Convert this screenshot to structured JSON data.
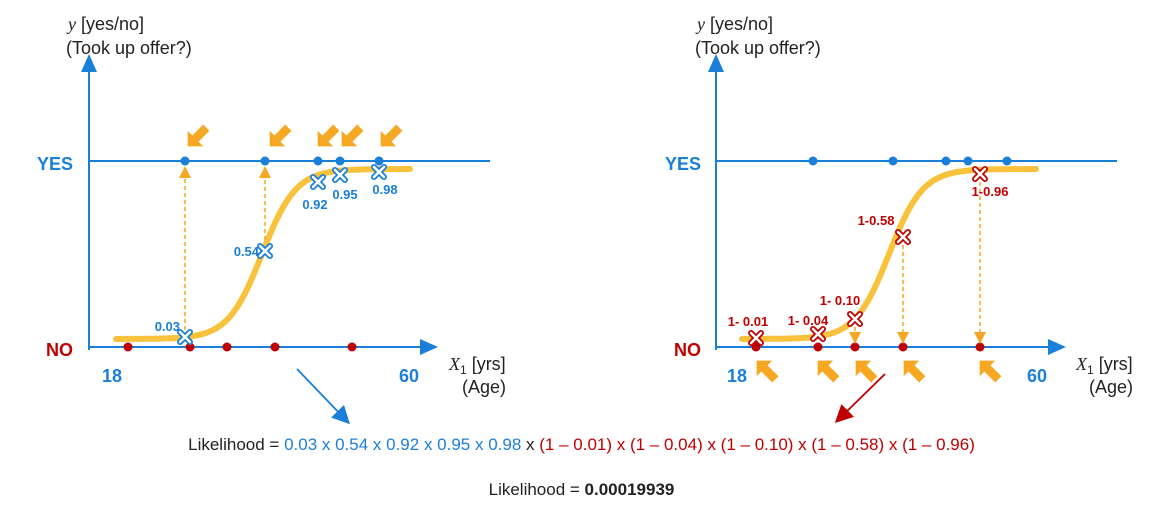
{
  "left_chart": {
    "ylabel_line1": "y [yes/no]",
    "ylabel_line2": "(Took up offer?)",
    "yes_label": "YES",
    "no_label": "NO",
    "x_min_label": "18",
    "x_max_label": "60",
    "xlabel_var": "X",
    "xlabel_sub": "1",
    "xlabel_unit": " [yrs]",
    "xlabel_line2": "(Age)",
    "probabilities": [
      {
        "text": "0.03",
        "value": 0.03
      },
      {
        "text": "0.54",
        "value": 0.54
      },
      {
        "text": "0.92",
        "value": 0.92
      },
      {
        "text": "0.95",
        "value": 0.95
      },
      {
        "text": "0.98",
        "value": 0.98
      }
    ]
  },
  "right_chart": {
    "ylabel_line1": "y [yes/no]",
    "ylabel_line2": "(Took up offer?)",
    "yes_label": "YES",
    "no_label": "NO",
    "x_min_label": "18",
    "x_max_label": "60",
    "xlabel_var": "X",
    "xlabel_sub": "1",
    "xlabel_unit": " [yrs]",
    "xlabel_line2": "(Age)",
    "probabilities": [
      {
        "text": "1- 0.01",
        "value": 0.01
      },
      {
        "text": "1- 0.04",
        "value": 0.04
      },
      {
        "text": "1- 0.10",
        "value": 0.1
      },
      {
        "text": "1-0.58",
        "value": 0.58
      },
      {
        "text": "1-0.96",
        "value": 0.96
      }
    ]
  },
  "formula": {
    "prefix": "Likelihood = ",
    "blue_part": "0.03 x 0.54 x 0.92 x 0.95 x 0.98",
    "joiner": " x ",
    "red_part": "(1 – 0.01) x (1 – 0.04) x (1 – 0.10) x (1 – 0.58) x (1 – 0.96)"
  },
  "result": {
    "prefix": "Likelihood = ",
    "value": "0.00019939"
  },
  "colors": {
    "blue": "#1a7fd9",
    "red": "#c00000",
    "curve": "#f9c23c",
    "arrow": "#f7a823"
  }
}
